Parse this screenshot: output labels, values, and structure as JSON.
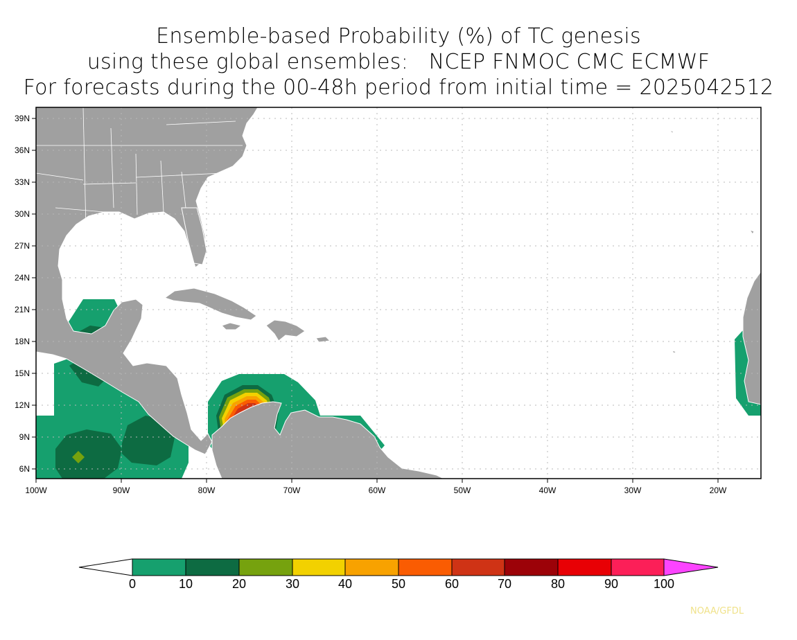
{
  "title": {
    "line1": "Ensemble-based Probability (%) of TC genesis",
    "line2": "using these global ensembles:   NCEP FNMOC CMC ECMWF",
    "line3": "For forecasts during the 00-48h period from initial time = 2025042512"
  },
  "map": {
    "lon_range": [
      -100,
      -15
    ],
    "lat_range": [
      5,
      40
    ],
    "lat_ticks": [
      "39N",
      "36N",
      "33N",
      "30N",
      "27N",
      "24N",
      "21N",
      "18N",
      "15N",
      "12N",
      "9N",
      "6N"
    ],
    "lon_ticks": [
      "100W",
      "90W",
      "80W",
      "70W",
      "60W",
      "50W",
      "40W",
      "30W",
      "20W"
    ],
    "gridlines": true,
    "land_color": "#a0a0a0",
    "ocean_color": "#ffffff"
  },
  "probability_regions": [
    {
      "level": "0-10",
      "area": "Gulf of Honduras / Yucatan"
    },
    {
      "level": "0-10",
      "area": "Eastern Pacific off Central America"
    },
    {
      "level": "10-20",
      "area": "Eastern Pacific cores"
    },
    {
      "level": "20-30",
      "area": "Eastern Pacific small spot"
    },
    {
      "level": "0-70",
      "area": "Southwestern Caribbean near Colombia"
    },
    {
      "level": "0-10",
      "area": "Off West Africa"
    }
  ],
  "colorbar": {
    "labels": [
      "0",
      "10",
      "20",
      "30",
      "40",
      "50",
      "60",
      "70",
      "80",
      "90",
      "100"
    ],
    "colors": [
      "#16a06e",
      "#0d6b42",
      "#76a20e",
      "#f2d100",
      "#f8a200",
      "#fa5c02",
      "#cf3315",
      "#9c0208",
      "#e80005",
      "#fc1f58"
    ],
    "below_color": "#ffffff",
    "above_color": "#fc44ff"
  },
  "credit": "NOAA/GFDL"
}
